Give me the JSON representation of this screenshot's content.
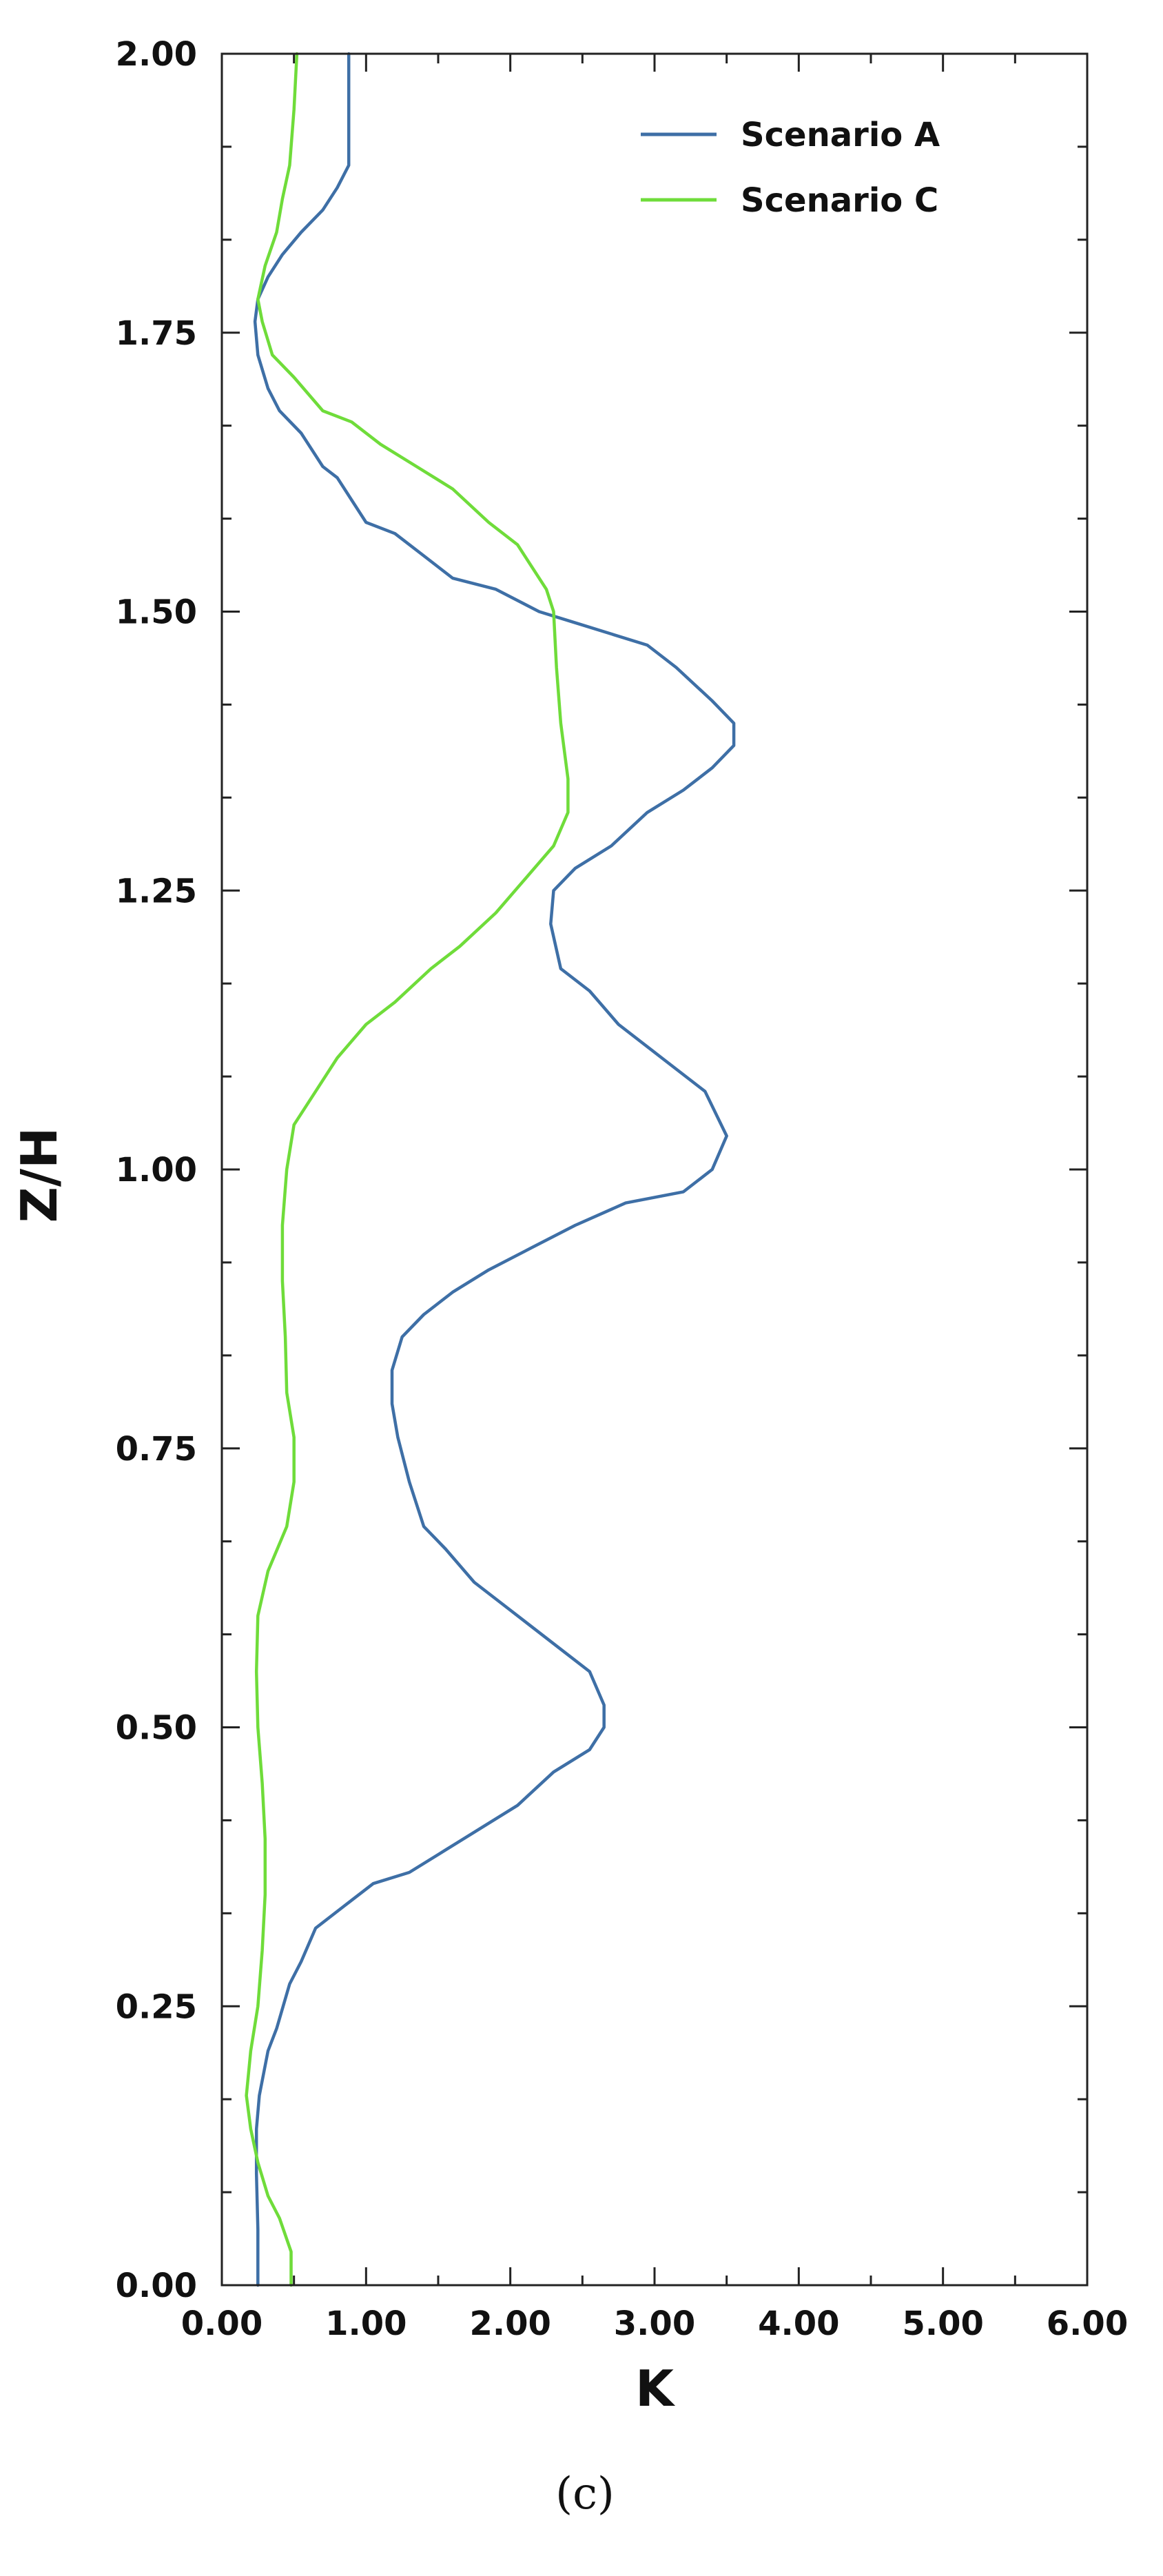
{
  "caption": "(c)",
  "chart_data": {
    "type": "line",
    "xlabel": "K",
    "ylabel": "Z/H",
    "xlim": [
      0,
      6
    ],
    "ylim": [
      0,
      2
    ],
    "x_ticks": [
      "0.00",
      "1.00",
      "2.00",
      "3.00",
      "4.00",
      "5.00",
      "6.00"
    ],
    "y_ticks": [
      "0.00",
      "0.25",
      "0.50",
      "0.75",
      "1.00",
      "1.25",
      "1.50",
      "1.75",
      "2.00"
    ],
    "grid": false,
    "legend": "top-right",
    "series": [
      {
        "name": "Scenario A",
        "color": "#3e6fa6",
        "points": [
          [
            0.25,
            0.0
          ],
          [
            0.25,
            0.05
          ],
          [
            0.24,
            0.1
          ],
          [
            0.24,
            0.14
          ],
          [
            0.26,
            0.17
          ],
          [
            0.32,
            0.21
          ],
          [
            0.38,
            0.23
          ],
          [
            0.47,
            0.27
          ],
          [
            0.55,
            0.29
          ],
          [
            0.65,
            0.32
          ],
          [
            0.85,
            0.34
          ],
          [
            1.05,
            0.36
          ],
          [
            1.3,
            0.37
          ],
          [
            1.55,
            0.39
          ],
          [
            1.8,
            0.41
          ],
          [
            2.05,
            0.43
          ],
          [
            2.3,
            0.46
          ],
          [
            2.55,
            0.48
          ],
          [
            2.65,
            0.5
          ],
          [
            2.65,
            0.52
          ],
          [
            2.55,
            0.55
          ],
          [
            2.35,
            0.57
          ],
          [
            2.15,
            0.59
          ],
          [
            1.95,
            0.61
          ],
          [
            1.75,
            0.63
          ],
          [
            1.55,
            0.66
          ],
          [
            1.4,
            0.68
          ],
          [
            1.3,
            0.72
          ],
          [
            1.22,
            0.76
          ],
          [
            1.18,
            0.79
          ],
          [
            1.18,
            0.82
          ],
          [
            1.25,
            0.85
          ],
          [
            1.4,
            0.87
          ],
          [
            1.6,
            0.89
          ],
          [
            1.85,
            0.91
          ],
          [
            2.15,
            0.93
          ],
          [
            2.45,
            0.95
          ],
          [
            2.8,
            0.97
          ],
          [
            3.2,
            0.98
          ],
          [
            3.4,
            1.0
          ],
          [
            3.5,
            1.03
          ],
          [
            3.35,
            1.07
          ],
          [
            3.05,
            1.1
          ],
          [
            2.75,
            1.13
          ],
          [
            2.55,
            1.16
          ],
          [
            2.35,
            1.18
          ],
          [
            2.28,
            1.22
          ],
          [
            2.3,
            1.25
          ],
          [
            2.45,
            1.27
          ],
          [
            2.7,
            1.29
          ],
          [
            2.95,
            1.32
          ],
          [
            3.2,
            1.34
          ],
          [
            3.4,
            1.36
          ],
          [
            3.55,
            1.38
          ],
          [
            3.55,
            1.4
          ],
          [
            3.4,
            1.42
          ],
          [
            3.15,
            1.45
          ],
          [
            2.95,
            1.47
          ],
          [
            2.7,
            1.48
          ],
          [
            2.45,
            1.49
          ],
          [
            2.2,
            1.5
          ],
          [
            1.9,
            1.52
          ],
          [
            1.6,
            1.53
          ],
          [
            1.4,
            1.55
          ],
          [
            1.2,
            1.57
          ],
          [
            1.0,
            1.58
          ],
          [
            0.9,
            1.6
          ],
          [
            0.8,
            1.62
          ],
          [
            0.7,
            1.63
          ],
          [
            0.55,
            1.66
          ],
          [
            0.4,
            1.68
          ],
          [
            0.32,
            1.7
          ],
          [
            0.25,
            1.73
          ],
          [
            0.23,
            1.76
          ],
          [
            0.25,
            1.78
          ],
          [
            0.32,
            1.8
          ],
          [
            0.42,
            1.82
          ],
          [
            0.55,
            1.84
          ],
          [
            0.7,
            1.86
          ],
          [
            0.8,
            1.88
          ],
          [
            0.88,
            1.9
          ],
          [
            0.88,
            1.95
          ],
          [
            0.88,
            2.0
          ]
        ]
      },
      {
        "name": "Scenario C",
        "color": "#6fdc3a",
        "points": [
          [
            0.48,
            0.0
          ],
          [
            0.48,
            0.03
          ],
          [
            0.4,
            0.06
          ],
          [
            0.32,
            0.08
          ],
          [
            0.25,
            0.11
          ],
          [
            0.2,
            0.14
          ],
          [
            0.17,
            0.17
          ],
          [
            0.2,
            0.21
          ],
          [
            0.25,
            0.25
          ],
          [
            0.28,
            0.3
          ],
          [
            0.3,
            0.35
          ],
          [
            0.3,
            0.4
          ],
          [
            0.28,
            0.45
          ],
          [
            0.25,
            0.5
          ],
          [
            0.24,
            0.55
          ],
          [
            0.25,
            0.6
          ],
          [
            0.32,
            0.64
          ],
          [
            0.45,
            0.68
          ],
          [
            0.5,
            0.72
          ],
          [
            0.5,
            0.76
          ],
          [
            0.45,
            0.8
          ],
          [
            0.44,
            0.85
          ],
          [
            0.42,
            0.9
          ],
          [
            0.42,
            0.95
          ],
          [
            0.45,
            1.0
          ],
          [
            0.5,
            1.04
          ],
          [
            0.65,
            1.07
          ],
          [
            0.8,
            1.1
          ],
          [
            1.0,
            1.13
          ],
          [
            1.2,
            1.15
          ],
          [
            1.45,
            1.18
          ],
          [
            1.65,
            1.2
          ],
          [
            1.9,
            1.23
          ],
          [
            2.1,
            1.26
          ],
          [
            2.3,
            1.29
          ],
          [
            2.4,
            1.32
          ],
          [
            2.4,
            1.35
          ],
          [
            2.35,
            1.4
          ],
          [
            2.32,
            1.45
          ],
          [
            2.3,
            1.5
          ],
          [
            2.25,
            1.52
          ],
          [
            2.05,
            1.56
          ],
          [
            1.85,
            1.58
          ],
          [
            1.6,
            1.61
          ],
          [
            1.35,
            1.63
          ],
          [
            1.1,
            1.65
          ],
          [
            0.9,
            1.67
          ],
          [
            0.7,
            1.68
          ],
          [
            0.5,
            1.71
          ],
          [
            0.35,
            1.73
          ],
          [
            0.28,
            1.76
          ],
          [
            0.25,
            1.78
          ],
          [
            0.3,
            1.81
          ],
          [
            0.38,
            1.84
          ],
          [
            0.42,
            1.87
          ],
          [
            0.47,
            1.9
          ],
          [
            0.5,
            1.95
          ],
          [
            0.52,
            2.0
          ]
        ]
      }
    ]
  }
}
